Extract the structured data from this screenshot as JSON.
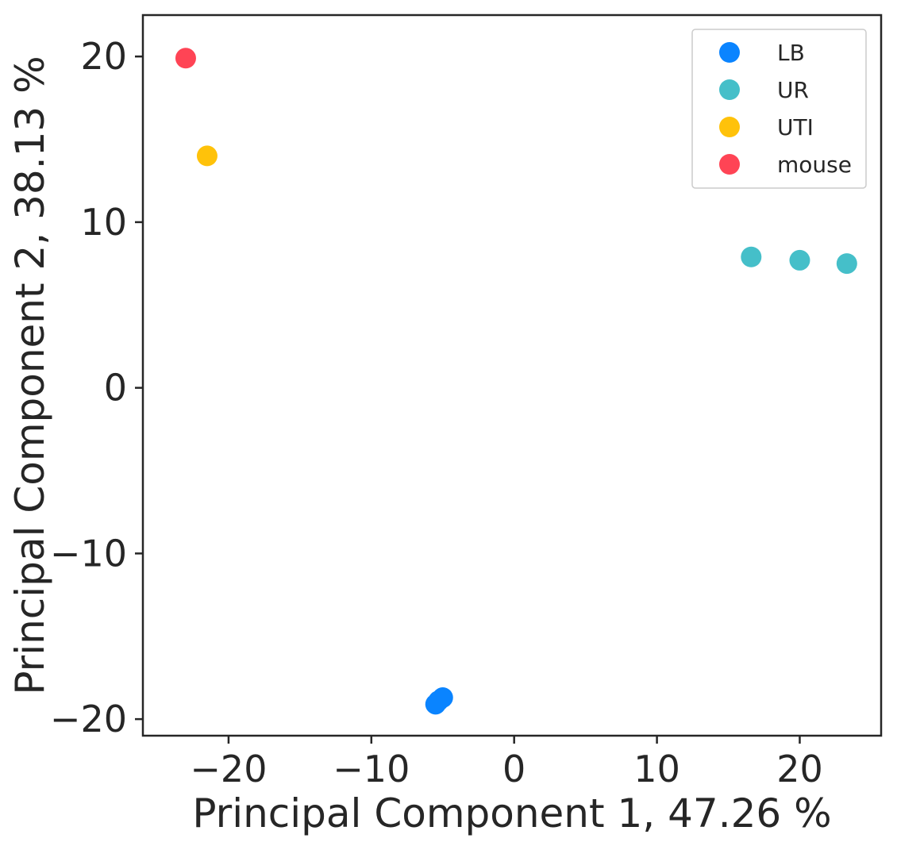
{
  "chart_data": {
    "type": "scatter",
    "xlabel": "Principal Component 1, 47.26 %",
    "ylabel": "Principal Component 2, 38.13 %",
    "xlim": [
      -26,
      25.7
    ],
    "ylim": [
      -21,
      22.5
    ],
    "xticks": [
      -20,
      -10,
      0,
      10,
      20
    ],
    "yticks": [
      -20,
      -10,
      0,
      10,
      20
    ],
    "xtick_labels": [
      "−20",
      "−10",
      "0",
      "10",
      "20"
    ],
    "ytick_labels": [
      "−20",
      "−10",
      "0",
      "10",
      "20"
    ],
    "grid": false,
    "legend_position": "top-right",
    "series": [
      {
        "name": "LB",
        "color": "#0A84FF",
        "points": [
          [
            -5.5,
            -19.1
          ],
          [
            -5.0,
            -18.7
          ],
          [
            -5.3,
            -18.9
          ]
        ]
      },
      {
        "name": "UR",
        "color": "#45BFC9",
        "points": [
          [
            16.6,
            7.9
          ],
          [
            20.0,
            7.7
          ],
          [
            23.3,
            7.5
          ]
        ]
      },
      {
        "name": "UTI",
        "color": "#FFC20A",
        "points": [
          [
            -21.5,
            14.0
          ]
        ]
      },
      {
        "name": "mouse",
        "color": "#FF4455",
        "points": [
          [
            -23.0,
            19.9
          ]
        ]
      }
    ]
  }
}
